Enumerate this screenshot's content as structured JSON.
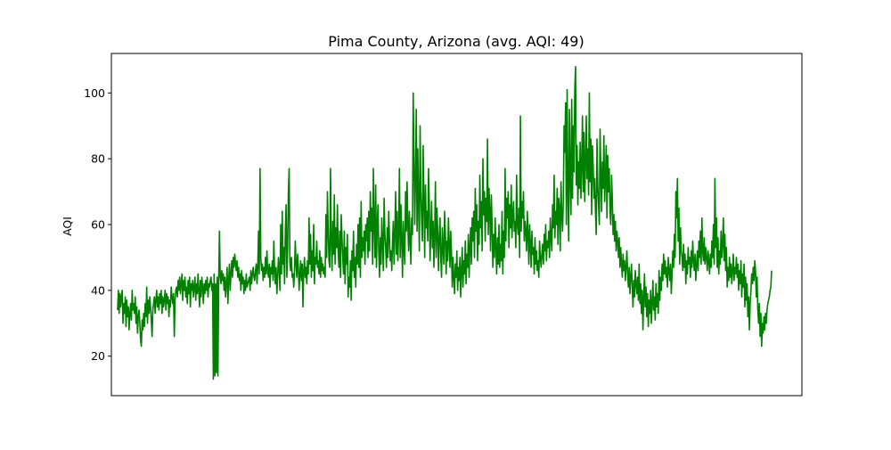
{
  "colors": {
    "series": "#008000",
    "axes": "#000000",
    "background": "#ffffff"
  },
  "chart_data": {
    "type": "line",
    "title": "Pima County, Arizona (avg. AQI: 49)",
    "xlabel": "",
    "ylabel": "AQI",
    "ylim": [
      8,
      112
    ],
    "yticks": [
      20,
      40,
      60,
      80,
      100
    ],
    "ytick_labels": [
      "20",
      "40",
      "60",
      "80",
      "100"
    ],
    "x_ticks_shown": false,
    "grid": false,
    "series": [
      {
        "color": "#008000",
        "values": [
          34,
          40,
          33,
          39,
          35,
          38,
          40,
          30,
          36,
          33,
          38,
          29,
          37,
          32,
          35,
          28,
          33,
          36,
          31,
          40,
          34,
          36,
          33,
          38,
          30,
          35,
          27,
          32,
          34,
          30,
          25,
          23,
          31,
          28,
          33,
          29,
          36,
          32,
          41,
          30,
          37,
          33,
          38,
          35,
          31,
          26,
          34,
          36,
          38,
          33,
          37,
          40,
          35,
          38,
          34,
          39,
          36,
          40,
          33,
          38,
          35,
          37,
          40,
          34,
          39,
          36,
          38,
          32,
          37,
          35,
          41,
          38,
          36,
          39,
          26,
          37,
          40,
          41,
          38,
          43,
          40,
          44,
          39,
          42,
          45,
          37,
          43,
          40,
          44,
          38,
          41,
          36,
          43,
          39,
          44,
          35,
          42,
          40,
          43,
          38,
          41,
          44,
          37,
          42,
          39,
          45,
          40,
          35,
          43,
          38,
          44,
          41,
          36,
          42,
          39,
          43,
          40,
          44,
          38,
          42,
          41,
          43,
          44,
          40,
          42,
          13,
          45,
          14,
          42,
          15,
          44,
          14,
          43,
          58,
          44,
          42,
          46,
          43,
          45,
          40,
          44,
          38,
          42,
          47,
          36,
          43,
          48,
          40,
          45,
          49,
          44,
          50,
          47,
          51,
          48,
          46,
          49,
          44,
          47,
          43,
          45,
          40,
          46,
          42,
          44,
          39,
          43,
          40,
          45,
          41,
          42,
          43,
          44,
          40,
          46,
          42,
          45,
          47,
          44,
          43,
          46,
          48,
          42,
          47,
          58,
          45,
          77,
          50,
          46,
          48,
          43,
          47,
          44,
          50,
          45,
          52,
          46,
          44,
          48,
          41,
          47,
          45,
          49,
          43,
          55,
          46,
          42,
          47,
          39,
          44,
          50,
          47,
          40,
          60,
          45,
          64,
          48,
          53,
          42,
          58,
          66,
          44,
          52,
          70,
          77,
          48,
          46,
          50,
          44,
          45,
          41,
          46,
          55,
          48,
          44,
          51,
          47,
          40,
          45,
          49,
          43,
          48,
          35,
          46,
          50,
          44,
          47,
          42,
          49,
          45,
          62,
          48,
          57,
          44,
          52,
          46,
          60,
          42,
          50,
          48,
          55,
          47,
          49,
          45,
          52,
          44,
          50,
          46,
          48,
          45,
          47,
          44,
          63,
          50,
          70,
          58,
          49,
          47,
          77,
          55,
          46,
          61,
          51,
          69,
          48,
          59,
          53,
          66,
          52,
          47,
          58,
          44,
          63,
          56,
          50,
          45,
          58,
          42,
          53,
          48,
          57,
          38,
          44,
          41,
          49,
          37,
          52,
          46,
          58,
          44,
          50,
          41,
          54,
          48,
          60,
          47,
          62,
          44,
          67,
          50,
          56,
          52,
          58,
          48,
          60,
          55,
          62,
          50,
          64,
          52,
          70,
          58,
          65,
          48,
          77,
          60,
          50,
          72,
          47,
          60,
          66,
          52,
          44,
          56,
          48,
          62,
          54,
          46,
          68,
          57,
          53,
          47,
          59,
          50,
          64,
          56,
          49,
          52,
          46,
          55,
          61,
          48,
          57,
          70,
          51,
          64,
          49,
          58,
          77,
          50,
          66,
          56,
          44,
          61,
          53,
          48,
          70,
          58,
          73,
          60,
          52,
          64,
          55,
          48,
          62,
          57,
          100,
          80,
          60,
          75,
          95,
          58,
          83,
          66,
          52,
          90,
          70,
          61,
          55,
          84,
          68,
          50,
          72,
          59,
          64,
          55,
          77,
          66,
          49,
          58,
          67,
          53,
          61,
          47,
          57,
          73,
          50,
          65,
          58,
          46,
          56,
          62,
          50,
          44,
          59,
          53,
          48,
          64,
          57,
          45,
          55,
          49,
          62,
          54,
          47,
          58,
          51,
          41,
          50,
          44,
          39,
          48,
          44,
          52,
          40,
          47,
          43,
          50,
          38,
          46,
          53,
          41,
          49,
          45,
          55,
          42,
          51,
          47,
          57,
          44,
          53,
          59,
          48,
          62,
          55,
          64,
          50,
          71,
          58,
          66,
          49,
          61,
          54,
          75,
          59,
          67,
          52,
          80,
          63,
          70,
          55,
          68,
          61,
          86,
          57,
          71,
          64,
          52,
          69,
          60,
          47,
          57,
          50,
          62,
          53,
          45,
          56,
          48,
          60,
          47,
          54,
          49,
          64,
          45,
          58,
          50,
          77,
          55,
          68,
          62,
          70,
          53,
          66,
          59,
          72,
          56,
          63,
          67,
          58,
          61,
          53,
          75,
          60,
          57,
          65,
          50,
          93,
          58,
          67,
          62,
          70,
          55,
          61,
          58,
          52,
          64,
          57,
          48,
          60,
          54,
          47,
          58,
          51,
          53,
          45,
          56,
          48,
          52,
          46,
          49,
          44,
          55,
          50,
          47,
          51,
          54,
          48,
          57,
          52,
          60,
          49,
          55,
          53,
          58,
          50,
          62,
          56,
          52,
          66,
          59,
          75,
          56,
          64,
          60,
          71,
          54,
          68,
          65,
          52,
          73,
          63,
          58,
          67,
          90,
          82,
          97,
          60,
          101,
          70,
          55,
          95,
          75,
          63,
          98,
          68,
          90,
          76,
          101,
          108,
          72,
          84,
          66,
          79,
          71,
          85,
          68,
          78,
          93,
          70,
          88,
          67,
          79,
          93,
          74,
          83,
          69,
          100,
          73,
          86,
          63,
          84,
          78,
          68,
          74,
          64,
          57,
          86,
          72,
          66,
          60,
          89,
          76,
          64,
          79,
          71,
          87,
          67,
          74,
          84,
          62,
          81,
          70,
          77,
          64,
          60,
          75,
          68,
          57,
          63,
          55,
          61,
          52,
          58,
          55,
          50,
          56,
          47,
          53,
          48,
          44,
          51,
          46,
          49,
          43,
          47,
          52,
          45,
          41,
          47,
          39,
          44,
          48,
          41,
          35,
          43,
          38,
          46,
          42,
          39,
          44,
          37,
          48,
          36,
          42,
          33,
          40,
          28,
          38,
          45,
          35,
          41,
          32,
          39,
          29,
          37,
          33,
          40,
          30,
          36,
          43,
          34,
          38,
          31,
          42,
          35,
          39,
          33,
          46,
          37,
          44,
          40,
          48,
          43,
          51,
          45,
          49,
          44,
          47,
          41,
          50,
          46,
          43,
          48,
          39,
          45,
          52,
          47,
          57,
          50,
          70,
          62,
          74,
          55,
          65,
          48,
          59,
          52,
          50,
          46,
          54,
          47,
          51,
          42,
          49,
          45,
          53,
          48,
          50,
          44,
          52,
          47,
          55,
          49,
          46,
          51,
          43,
          48,
          52,
          46,
          55,
          50,
          58,
          48,
          62,
          52,
          49,
          56,
          48,
          53,
          50,
          46,
          52,
          49,
          45,
          51,
          47,
          55,
          50,
          60,
          48,
          74,
          53,
          62,
          47,
          56,
          45,
          52,
          48,
          58,
          50,
          54,
          62,
          49,
          57,
          46,
          53,
          41,
          47,
          43,
          50,
          44,
          48,
          42,
          46,
          51,
          43,
          47,
          45,
          50,
          44,
          48,
          40,
          46,
          42,
          49,
          38,
          45,
          41,
          48,
          35,
          44,
          37,
          42,
          32,
          38,
          28,
          36,
          40,
          45,
          42,
          47,
          43,
          49,
          46,
          38,
          44,
          34,
          30,
          36,
          26,
          33,
          23,
          30,
          27,
          32,
          28,
          33,
          30,
          34,
          36,
          37,
          38,
          40,
          41,
          46
        ]
      }
    ]
  }
}
